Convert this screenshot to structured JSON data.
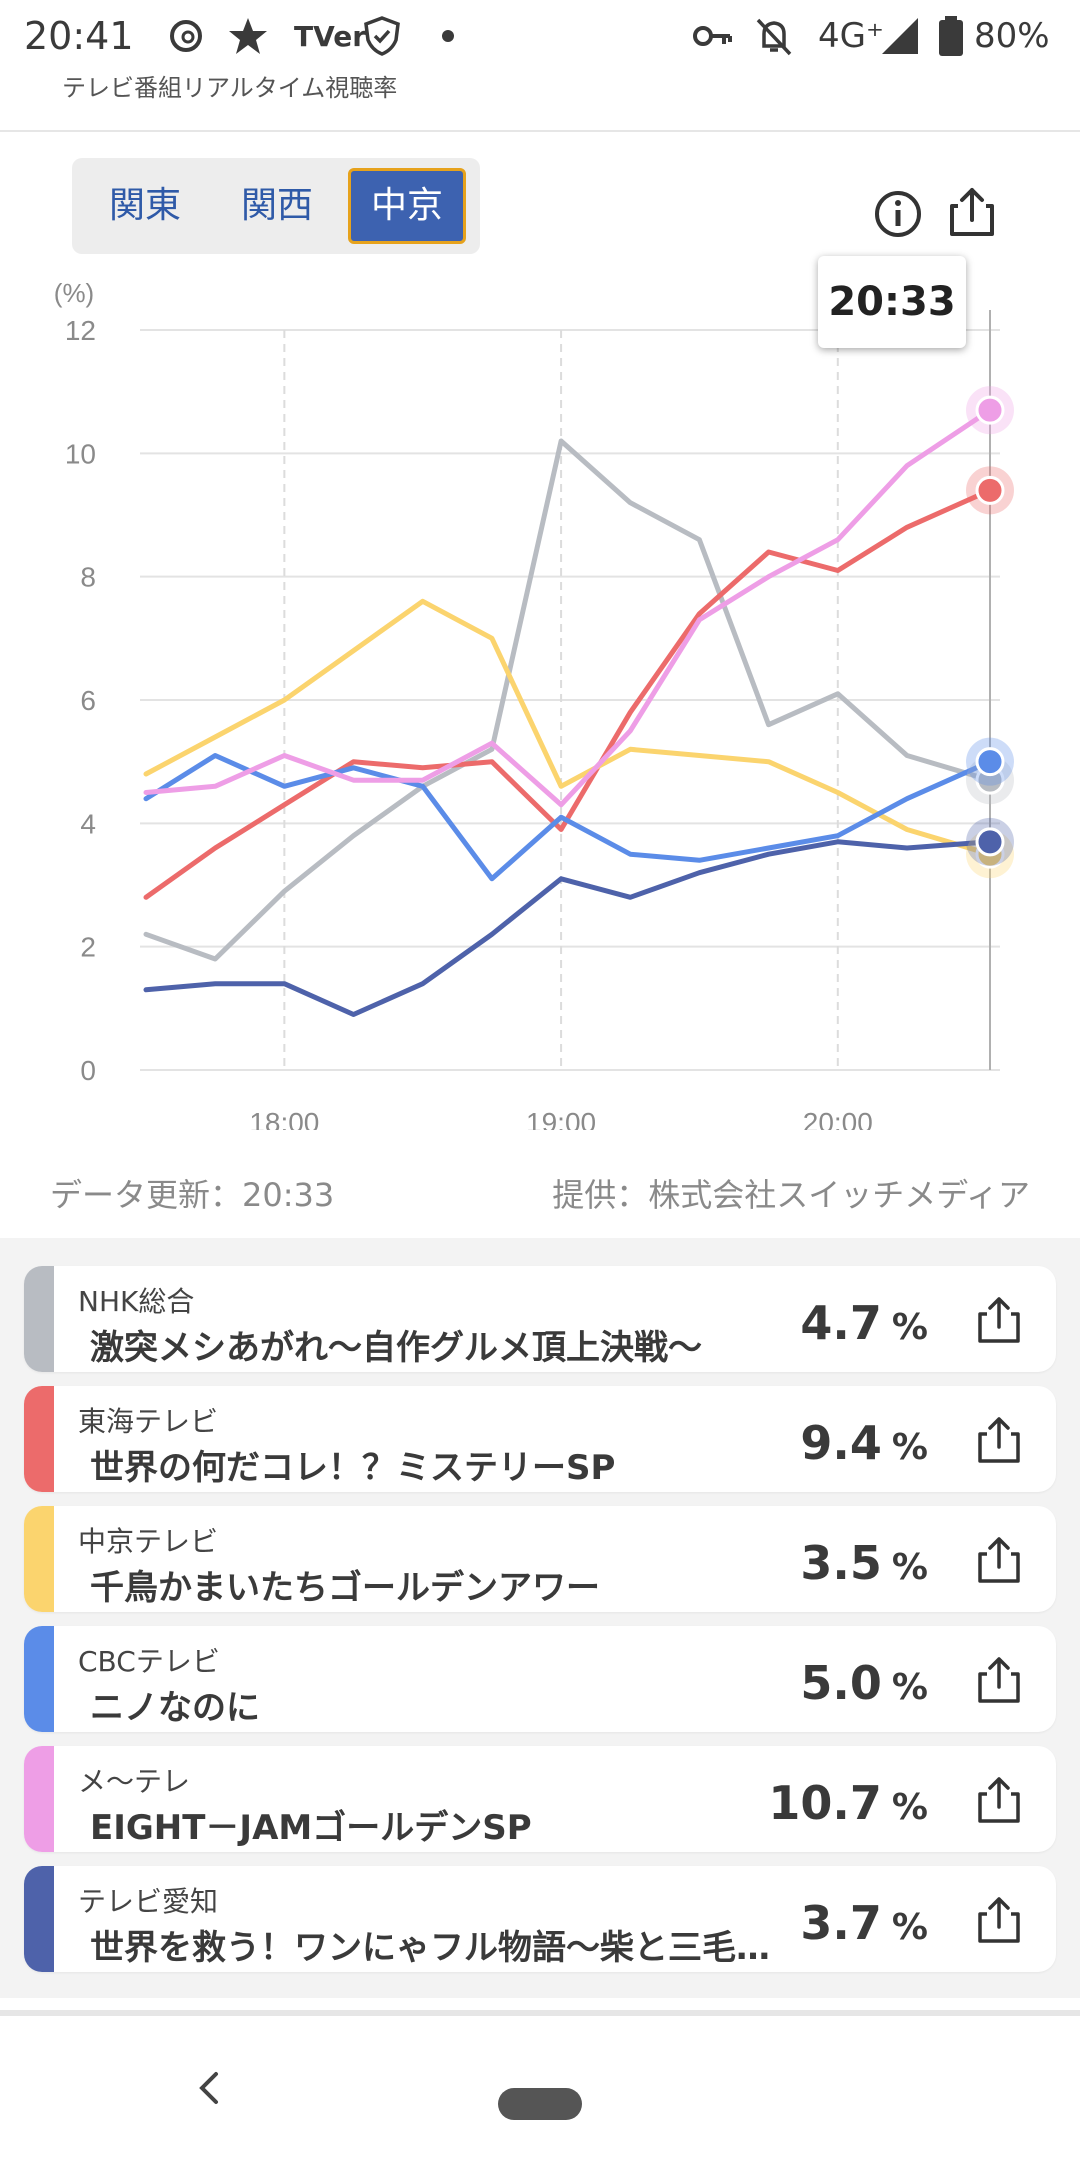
{
  "status_bar": {
    "time": "20:41",
    "icons": [
      "threads-icon",
      "star-icon",
      "tver-icon",
      "shield-icon",
      "dot-icon",
      "key-icon",
      "bell-off-icon"
    ],
    "tver_label": "TVer",
    "network": "4G⁺",
    "battery": "80%"
  },
  "app": {
    "title": "テレビ番組リアルタイム視聴率"
  },
  "regions": {
    "tabs": [
      {
        "label": "関東",
        "active": false
      },
      {
        "label": "関西",
        "active": false
      },
      {
        "label": "中京",
        "active": true
      }
    ]
  },
  "tooltip": {
    "time": "20:33"
  },
  "chart_data": {
    "type": "line",
    "ylabel": "(%)",
    "ylim": [
      0,
      12
    ],
    "yticks": [
      "0",
      "2",
      "4",
      "6",
      "8",
      "10",
      "12"
    ],
    "xticks": [
      "18:00",
      "19:00",
      "20:00"
    ],
    "x": [
      "17:30",
      "17:45",
      "18:00",
      "18:15",
      "18:30",
      "18:45",
      "19:00",
      "19:15",
      "19:30",
      "19:45",
      "20:00",
      "20:15",
      "20:33"
    ],
    "grid": true,
    "series": [
      {
        "name": "NHK総合",
        "color": "#b8bcc2",
        "values": [
          2.2,
          1.8,
          2.9,
          3.8,
          4.6,
          5.2,
          10.2,
          9.2,
          8.6,
          5.6,
          6.1,
          5.1,
          4.7
        ]
      },
      {
        "name": "東海テレビ",
        "color": "#ec6b6b",
        "values": [
          2.8,
          3.6,
          4.3,
          5.0,
          4.9,
          5.0,
          3.9,
          5.8,
          7.4,
          8.4,
          8.1,
          8.8,
          9.4
        ]
      },
      {
        "name": "中京テレビ",
        "color": "#fbd46e",
        "values": [
          4.8,
          5.4,
          6.0,
          6.8,
          7.6,
          7.0,
          4.6,
          5.2,
          5.1,
          5.0,
          4.5,
          3.9,
          3.5
        ]
      },
      {
        "name": "CBCテレビ",
        "color": "#5b8ce8",
        "values": [
          4.4,
          5.1,
          4.6,
          4.9,
          4.6,
          3.1,
          4.1,
          3.5,
          3.4,
          3.6,
          3.8,
          4.4,
          5.0
        ]
      },
      {
        "name": "メ～テレ",
        "color": "#ee9ee6",
        "values": [
          4.5,
          4.6,
          5.1,
          4.7,
          4.7,
          5.3,
          4.3,
          5.5,
          7.3,
          8.0,
          8.6,
          9.8,
          10.7
        ]
      },
      {
        "name": "テレビ愛知",
        "color": "#4e62aa",
        "values": [
          1.3,
          1.4,
          1.4,
          0.9,
          1.4,
          2.2,
          3.1,
          2.8,
          3.2,
          3.5,
          3.7,
          3.6,
          3.7
        ]
      }
    ]
  },
  "footer": {
    "updated": "データ更新：20:33",
    "provider": "提供：株式会社スイッチメディア"
  },
  "channels": [
    {
      "channel": "NHK総合",
      "program": "激突メシあがれ～自作グルメ頂上決戦～",
      "rating": "4.7",
      "unit": "%",
      "color": "#b8bcc2"
    },
    {
      "channel": "東海テレビ",
      "program": "世界の何だコレ！？ミステリーSP",
      "rating": "9.4",
      "unit": "%",
      "color": "#ec6b6b"
    },
    {
      "channel": "中京テレビ",
      "program": "千鳥かまいたちゴールデンアワー",
      "rating": "3.5",
      "unit": "%",
      "color": "#fbd46e"
    },
    {
      "channel": "CBCテレビ",
      "program": "ニノなのに",
      "rating": "5.0",
      "unit": "%",
      "color": "#5b8ce8"
    },
    {
      "channel": "メ～テレ",
      "program": "EIGHT－JAMゴールデンSP",
      "rating": "10.7",
      "unit": "%",
      "color": "#ee9ee6"
    },
    {
      "channel": "テレビ愛知",
      "program": "世界を救う！ワンにゃフル物語～柴と三毛…",
      "rating": "3.7",
      "unit": "%",
      "color": "#4e62aa"
    }
  ]
}
